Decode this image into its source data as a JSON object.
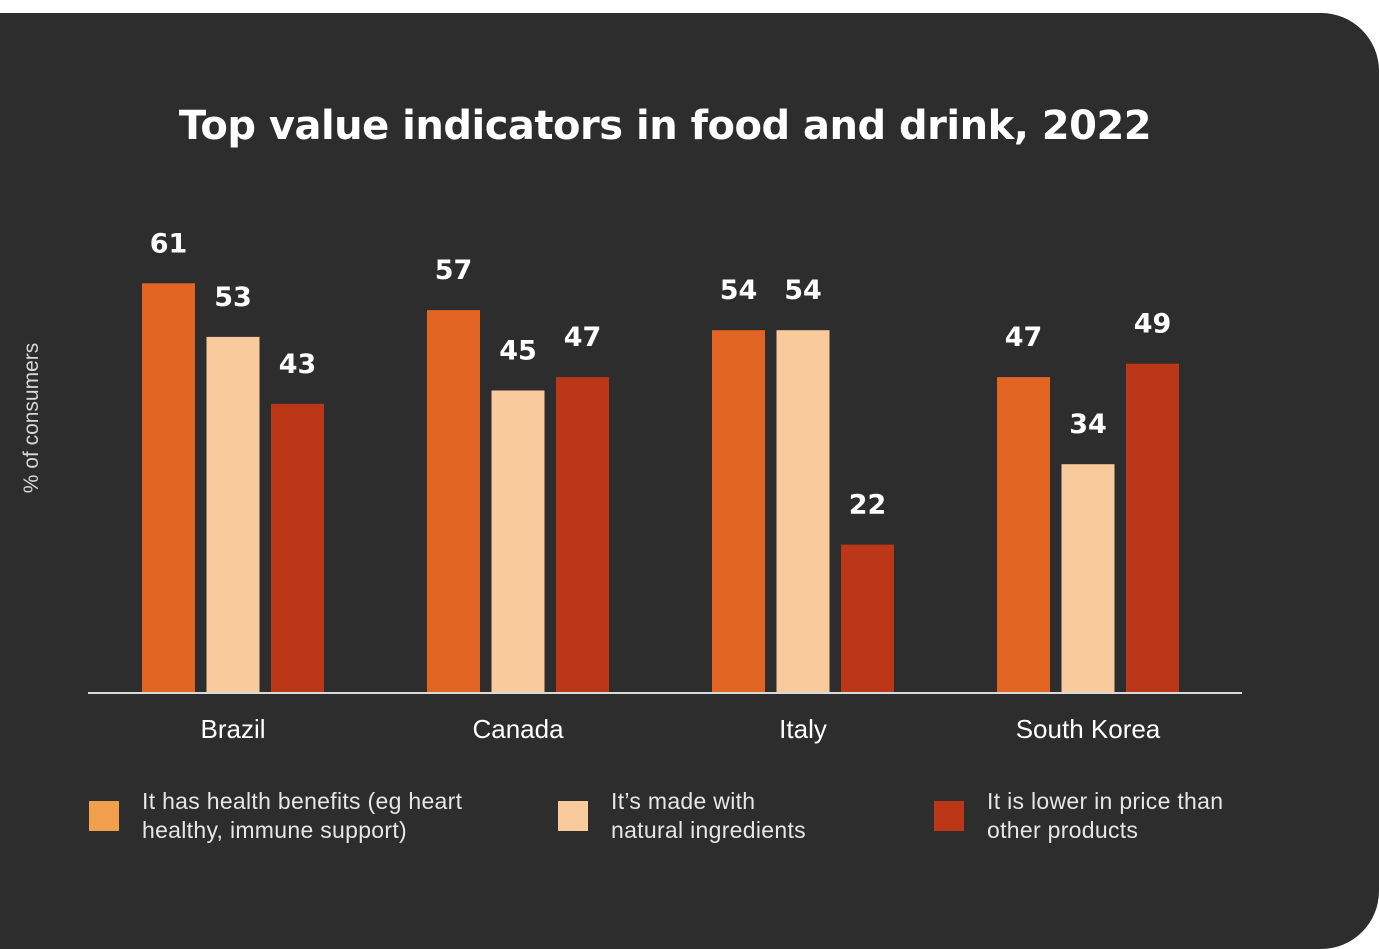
{
  "chart_data": {
    "type": "bar",
    "title": "Top value indicators in food and drink, 2022",
    "ylabel": "% of consumers",
    "xlabel": "",
    "ylim": [
      0,
      61
    ],
    "grid": false,
    "legend_position": "bottom",
    "categories": [
      "Brazil",
      "Canada",
      "Italy",
      "South Korea"
    ],
    "series": [
      {
        "name": "It has health benefits (eg heart healthy, immune support)",
        "legend_lines": [
          "It has health benefits (eg heart",
          "healthy, immune support)"
        ],
        "color": "#e36523",
        "swatch_color": "#f2a04e",
        "values": [
          61,
          57,
          54,
          47
        ]
      },
      {
        "name": "It’s made with natural ingredients",
        "legend_lines": [
          "It’s made with",
          "natural ingredients"
        ],
        "color": "#f9ca9b",
        "swatch_color": "#f9ca9b",
        "values": [
          53,
          45,
          54,
          34
        ]
      },
      {
        "name": "It is lower in price than other products",
        "legend_lines": [
          "It is lower in price than",
          "other products"
        ],
        "color": "#bc3618",
        "swatch_color": "#bc3618",
        "values": [
          43,
          47,
          22,
          49
        ]
      }
    ]
  },
  "colors": {
    "background": "#2d2d2d",
    "axis": "#d9d9d9",
    "text": "#ffffff"
  }
}
